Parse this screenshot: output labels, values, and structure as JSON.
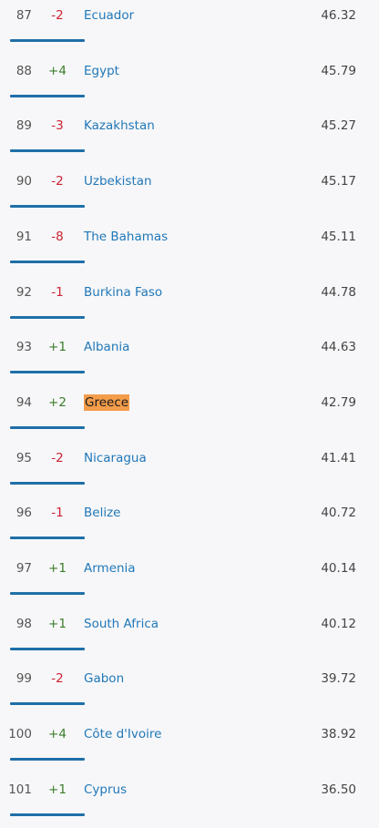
{
  "rankings": [
    {
      "rank": "87",
      "change": "-2",
      "direction": "down",
      "country": "Ecuador",
      "score": "46.32"
    },
    {
      "rank": "88",
      "change": "+4",
      "direction": "up",
      "country": "Egypt",
      "score": "45.79"
    },
    {
      "rank": "89",
      "change": "-3",
      "direction": "down",
      "country": "Kazakhstan",
      "score": "45.27"
    },
    {
      "rank": "90",
      "change": "-2",
      "direction": "down",
      "country": "Uzbekistan",
      "score": "45.17"
    },
    {
      "rank": "91",
      "change": "-8",
      "direction": "down",
      "country": "The Bahamas",
      "score": "45.11"
    },
    {
      "rank": "92",
      "change": "-1",
      "direction": "down",
      "country": "Burkina Faso",
      "score": "44.78"
    },
    {
      "rank": "93",
      "change": "+1",
      "direction": "up",
      "country": "Albania",
      "score": "44.63"
    },
    {
      "rank": "94",
      "change": "+2",
      "direction": "up",
      "country": "Greece",
      "score": "42.79",
      "highlighted": true
    },
    {
      "rank": "95",
      "change": "-2",
      "direction": "down",
      "country": "Nicaragua",
      "score": "41.41"
    },
    {
      "rank": "96",
      "change": "-1",
      "direction": "down",
      "country": "Belize",
      "score": "40.72"
    },
    {
      "rank": "97",
      "change": "+1",
      "direction": "up",
      "country": "Armenia",
      "score": "40.14"
    },
    {
      "rank": "98",
      "change": "+1",
      "direction": "up",
      "country": "South Africa",
      "score": "40.12"
    },
    {
      "rank": "99",
      "change": "-2",
      "direction": "down",
      "country": "Gabon",
      "score": "39.72"
    },
    {
      "rank": "100",
      "change": "+4",
      "direction": "up",
      "country": "Côte d'Ivoire",
      "score": "38.92"
    },
    {
      "rank": "101",
      "change": "+1",
      "direction": "up",
      "country": "Cyprus",
      "score": "36.50"
    }
  ],
  "colors": {
    "link": "#2178b8",
    "up": "#3a7d2a",
    "down": "#cc2233",
    "highlight": "#f39c4a",
    "underline": "#1f6fa8"
  }
}
